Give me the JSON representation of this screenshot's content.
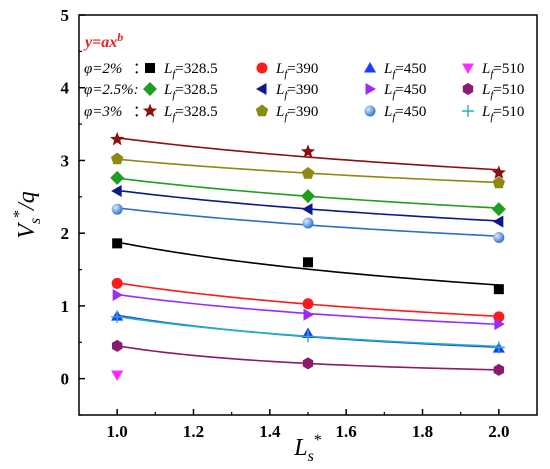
{
  "chart_data": {
    "type": "scatter",
    "title": "",
    "xlabel": {
      "main": "L",
      "sub": "s",
      "sup": "*"
    },
    "ylabel": {
      "main": "V",
      "sub": "s",
      "sup": "*",
      "tail": "/q"
    },
    "xlim": [
      0.9,
      2.1
    ],
    "ylim": [
      -0.5,
      5
    ],
    "xticks": [
      "1.0",
      "1.2",
      "1.4",
      "1.6",
      "1.8",
      "2.0"
    ],
    "xtick_values": [
      1.0,
      1.2,
      1.4,
      1.6,
      1.8,
      2.0
    ],
    "yticks": [
      "0",
      "1",
      "2",
      "3",
      "4",
      "5"
    ],
    "ytick_values": [
      0,
      1,
      2,
      3,
      4,
      5
    ],
    "grid": false,
    "legend_placement": "top",
    "equation": {
      "base": "y=ax",
      "exp": "b"
    },
    "legend_rows": [
      {
        "label": "φ=2%",
        "suffix": "："
      },
      {
        "label": "φ=2.5%:",
        "suffix": ""
      },
      {
        "label": "φ=3%",
        "suffix": "："
      }
    ],
    "legend_columns": [
      "328.5",
      "390",
      "450",
      "510"
    ],
    "legend_prefix": {
      "main": "L",
      "sub": "f",
      "eq": "="
    },
    "x": [
      1.0,
      1.5,
      2.0
    ],
    "series": [
      {
        "row": 0,
        "col": 0,
        "color": "#000000",
        "marker": "square",
        "values": [
          1.86,
          1.6,
          1.23
        ],
        "fit": [
          1.88,
          1.5,
          1.29
        ]
      },
      {
        "row": 0,
        "col": 1,
        "color": "#ff1a1a",
        "marker": "circle",
        "values": [
          1.31,
          1.03,
          0.85
        ],
        "fit": [
          1.32,
          1.02,
          0.86
        ]
      },
      {
        "row": 0,
        "col": 2,
        "color": "#1f3bff",
        "marker": "triangle-up",
        "values": [
          0.86,
          0.62,
          0.42
        ],
        "fit": [
          0.87,
          0.58,
          0.43
        ]
      },
      {
        "row": 0,
        "col": 3,
        "color": "#ff2bff",
        "marker": "triangle-down",
        "values": [
          0.05
        ],
        "fit": null
      },
      {
        "row": 1,
        "col": 0,
        "color": "#1f9e1f",
        "marker": "diamond",
        "values": [
          2.76,
          2.51,
          2.33
        ],
        "fit": [
          2.76,
          2.5,
          2.35
        ]
      },
      {
        "row": 1,
        "col": 1,
        "color": "#0a1a8a",
        "marker": "triangle-left",
        "values": [
          2.58,
          2.33,
          2.16
        ],
        "fit": [
          2.59,
          2.33,
          2.17
        ]
      },
      {
        "row": 1,
        "col": 2,
        "color": "#9a2bff",
        "marker": "triangle-right",
        "values": [
          1.15,
          0.88,
          0.75
        ],
        "fit": [
          1.16,
          0.89,
          0.75
        ]
      },
      {
        "row": 1,
        "col": 3,
        "color": "#8a1a6e",
        "marker": "hexagon",
        "values": [
          0.45,
          0.21,
          0.12
        ],
        "fit": [
          0.45,
          0.21,
          0.12
        ]
      },
      {
        "row": 2,
        "col": 0,
        "color": "#8a1010",
        "marker": "star",
        "values": [
          3.29,
          3.12,
          2.83
        ],
        "fit": [
          3.31,
          3.05,
          2.87
        ]
      },
      {
        "row": 2,
        "col": 1,
        "color": "#8c8a10",
        "marker": "pentagon",
        "values": [
          3.02,
          2.82,
          2.69
        ],
        "fit": [
          3.02,
          2.82,
          2.7
        ]
      },
      {
        "row": 2,
        "col": 2,
        "color": "#2a6fc8",
        "marker": "sphere",
        "values": [
          2.33,
          2.14,
          1.94
        ],
        "fit": [
          2.34,
          2.13,
          1.95
        ]
      },
      {
        "row": 2,
        "col": 3,
        "color": "#1fb3b3",
        "marker": "plus",
        "values": [
          0.85,
          0.58,
          0.43
        ],
        "fit": [
          0.85,
          0.59,
          0.44
        ]
      }
    ]
  }
}
